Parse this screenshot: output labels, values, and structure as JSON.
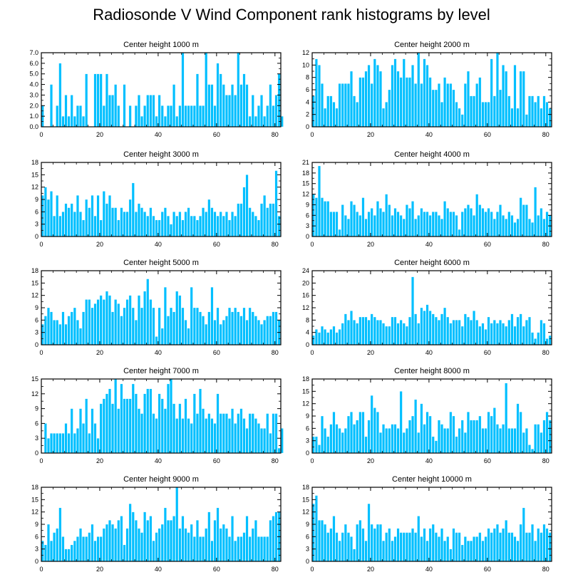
{
  "figure": {
    "title": "Radiosonde V Wind Component rank histograms by level"
  },
  "style": {
    "bar_color": "#00bfff",
    "bar_edge": "#ffffff",
    "axis_color": "#000000"
  },
  "chart_data": [
    {
      "type": "bar",
      "title": "Center height 1000 m",
      "xlim": [
        0,
        82
      ],
      "ylim": [
        0,
        7
      ],
      "xticks": [
        0,
        20,
        40,
        60,
        80
      ],
      "yticks": [
        "0.0",
        "1.0",
        "2.0",
        "3.0",
        "4.0",
        "5.0",
        "6.0",
        "7.0"
      ],
      "values": [
        2,
        0,
        0,
        4,
        0,
        2,
        6,
        1,
        3,
        1,
        3,
        1,
        2,
        2,
        1,
        5,
        0,
        0,
        5,
        5,
        5,
        2,
        5,
        3,
        3,
        4,
        2,
        0,
        4,
        0,
        2,
        0,
        2,
        3,
        1,
        2,
        3,
        3,
        3,
        1,
        3,
        2,
        1,
        2,
        2,
        4,
        1,
        2,
        7,
        2,
        2,
        2,
        2,
        5,
        2,
        2,
        7,
        4,
        4,
        2,
        6,
        5,
        4,
        3,
        3,
        4,
        3,
        7,
        4,
        5,
        4,
        1,
        3,
        1,
        2,
        3,
        1,
        2,
        4,
        2,
        3,
        5,
        1
      ]
    },
    {
      "type": "bar",
      "title": "Center height 2000 m",
      "xlim": [
        0,
        82
      ],
      "ylim": [
        0,
        12
      ],
      "xticks": [
        0,
        20,
        40,
        60,
        80
      ],
      "yticks": [
        "0",
        "2",
        "4",
        "6",
        "8",
        "10",
        "12"
      ],
      "values": [
        5,
        11,
        10,
        7,
        3,
        5,
        5,
        4,
        3,
        7,
        7,
        7,
        7,
        9,
        5,
        4,
        8,
        8,
        9,
        10,
        7,
        11,
        10,
        9,
        3,
        4,
        6,
        10,
        11,
        9,
        8,
        11,
        8,
        8,
        10,
        7,
        12,
        7,
        11,
        10,
        8,
        6,
        6,
        7,
        4,
        8,
        7,
        7,
        6,
        4,
        3,
        2,
        7,
        9,
        5,
        5,
        7,
        8,
        4,
        4,
        4,
        11,
        5,
        12,
        6,
        10,
        9,
        5,
        3,
        10,
        3,
        9,
        9,
        2,
        5,
        5,
        4,
        5,
        3,
        5,
        4,
        3
      ]
    },
    {
      "type": "bar",
      "title": "Center height 3000 m",
      "xlim": [
        0,
        82
      ],
      "ylim": [
        0,
        18
      ],
      "xticks": [
        0,
        20,
        40,
        60,
        80
      ],
      "yticks": [
        "0",
        "3",
        "6",
        "9",
        "12",
        "15",
        "18"
      ],
      "values": [
        10,
        12,
        9,
        11,
        5,
        10,
        5,
        6,
        8,
        7,
        8,
        6,
        10,
        6,
        4,
        9,
        7,
        10,
        5,
        10,
        4,
        11,
        8,
        10,
        7,
        7,
        4,
        7,
        6,
        6,
        9,
        13,
        6,
        8,
        7,
        6,
        5,
        7,
        5,
        4,
        4,
        6,
        7,
        5,
        3,
        6,
        5,
        6,
        4,
        6,
        7,
        5,
        5,
        4,
        5,
        7,
        6,
        9,
        7,
        6,
        5,
        6,
        5,
        6,
        4,
        6,
        5,
        8,
        8,
        12,
        15,
        7,
        6,
        5,
        4,
        8,
        10,
        7,
        8,
        8,
        16,
        5
      ]
    },
    {
      "type": "bar",
      "title": "Center height 4000 m",
      "xlim": [
        0,
        82
      ],
      "ylim": [
        0,
        21
      ],
      "xticks": [
        0,
        20,
        40,
        60,
        80
      ],
      "yticks": [
        "0",
        "3",
        "6",
        "9",
        "12",
        "15",
        "18",
        "21"
      ],
      "values": [
        12,
        11,
        20,
        11,
        10,
        10,
        7,
        7,
        7,
        2,
        9,
        6,
        5,
        10,
        9,
        7,
        6,
        11,
        5,
        7,
        8,
        6,
        10,
        8,
        7,
        12,
        9,
        6,
        8,
        7,
        6,
        5,
        9,
        8,
        10,
        5,
        6,
        8,
        7,
        7,
        6,
        7,
        7,
        6,
        5,
        10,
        8,
        7,
        7,
        6,
        2,
        7,
        8,
        9,
        8,
        6,
        12,
        9,
        8,
        7,
        8,
        7,
        5,
        7,
        9,
        6,
        5,
        7,
        6,
        4,
        5,
        11,
        9,
        9,
        5,
        4,
        14,
        6,
        8,
        5,
        7,
        6
      ]
    },
    {
      "type": "bar",
      "title": "Center height 5000 m",
      "xlim": [
        0,
        82
      ],
      "ylim": [
        0,
        18
      ],
      "xticks": [
        0,
        20,
        40,
        60,
        80
      ],
      "yticks": [
        "0",
        "3",
        "6",
        "9",
        "12",
        "15",
        "18"
      ],
      "values": [
        5,
        7,
        9,
        8,
        6,
        6,
        5,
        8,
        5,
        7,
        8,
        9,
        6,
        4,
        8,
        11,
        11,
        9,
        10,
        11,
        12,
        11,
        13,
        12,
        8,
        11,
        10,
        7,
        9,
        11,
        12,
        9,
        6,
        12,
        9,
        13,
        16,
        11,
        9,
        2,
        9,
        4,
        14,
        7,
        9,
        8,
        13,
        12,
        9,
        6,
        4,
        14,
        9,
        9,
        8,
        7,
        5,
        8,
        14,
        6,
        9,
        5,
        6,
        7,
        9,
        8,
        9,
        8,
        7,
        9,
        6,
        9,
        8,
        7,
        6,
        5,
        6,
        7,
        7,
        8,
        8,
        6
      ]
    },
    {
      "type": "bar",
      "title": "Center height 6000 m",
      "xlim": [
        0,
        82
      ],
      "ylim": [
        0,
        24
      ],
      "xticks": [
        0,
        20,
        40,
        60,
        80
      ],
      "yticks": [
        "0",
        "4",
        "8",
        "12",
        "16",
        "20",
        "24"
      ],
      "values": [
        3,
        5,
        4,
        6,
        5,
        4,
        5,
        6,
        4,
        5,
        7,
        10,
        8,
        11,
        8,
        7,
        9,
        9,
        9,
        8,
        10,
        9,
        8,
        8,
        7,
        6,
        6,
        9,
        9,
        7,
        8,
        7,
        6,
        9,
        22,
        10,
        7,
        12,
        11,
        13,
        11,
        10,
        9,
        8,
        10,
        12,
        9,
        7,
        8,
        8,
        8,
        6,
        10,
        9,
        8,
        11,
        8,
        6,
        7,
        5,
        9,
        7,
        8,
        7,
        8,
        7,
        6,
        8,
        10,
        6,
        9,
        10,
        6,
        8,
        9,
        4,
        2,
        4,
        8,
        7,
        2,
        3
      ]
    },
    {
      "type": "bar",
      "title": "Center height 7000 m",
      "xlim": [
        0,
        82
      ],
      "ylim": [
        0,
        15
      ],
      "xticks": [
        0,
        20,
        40,
        60,
        80
      ],
      "yticks": [
        "0",
        "3",
        "6",
        "9",
        "12",
        "15"
      ],
      "values": [
        0,
        6,
        3,
        4,
        4,
        4,
        4,
        4,
        6,
        4,
        9,
        4,
        5,
        9,
        6,
        11,
        4,
        9,
        6,
        3,
        10,
        11,
        12,
        13,
        10,
        15,
        9,
        14,
        11,
        11,
        11,
        14,
        12,
        9,
        8,
        12,
        13,
        13,
        8,
        7,
        12,
        11,
        9,
        14,
        15,
        10,
        7,
        10,
        7,
        11,
        7,
        6,
        12,
        8,
        13,
        9,
        7,
        8,
        7,
        6,
        12,
        8,
        8,
        8,
        7,
        9,
        6,
        8,
        9,
        7,
        5,
        8,
        8,
        7,
        6,
        5,
        5,
        8,
        4,
        8,
        8,
        1,
        5
      ]
    },
    {
      "type": "bar",
      "title": "Center height 8000 m",
      "xlim": [
        0,
        82
      ],
      "ylim": [
        0,
        18
      ],
      "xticks": [
        0,
        20,
        40,
        60,
        80
      ],
      "yticks": [
        "0",
        "3",
        "6",
        "9",
        "12",
        "15",
        "18"
      ],
      "values": [
        4,
        4,
        2,
        9,
        6,
        4,
        7,
        10,
        7,
        6,
        5,
        6,
        9,
        10,
        7,
        8,
        10,
        10,
        4,
        8,
        14,
        11,
        10,
        5,
        7,
        6,
        6,
        7,
        7,
        6,
        15,
        5,
        6,
        8,
        9,
        13,
        5,
        12,
        7,
        10,
        9,
        4,
        3,
        8,
        7,
        6,
        6,
        10,
        9,
        4,
        6,
        8,
        5,
        10,
        8,
        8,
        8,
        9,
        6,
        6,
        10,
        9,
        11,
        7,
        6,
        7,
        17,
        6,
        6,
        6,
        12,
        10,
        5,
        6,
        2,
        1,
        7,
        7,
        5,
        8,
        10,
        8
      ]
    },
    {
      "type": "bar",
      "title": "Center height 9000 m",
      "xlim": [
        0,
        82
      ],
      "ylim": [
        0,
        18
      ],
      "xticks": [
        0,
        20,
        40,
        60,
        80
      ],
      "yticks": [
        "0",
        "3",
        "6",
        "9",
        "12",
        "15",
        "18"
      ],
      "values": [
        5,
        4,
        9,
        5,
        7,
        8,
        13,
        6,
        3,
        3,
        4,
        5,
        6,
        8,
        6,
        6,
        7,
        9,
        5,
        6,
        6,
        8,
        9,
        10,
        9,
        8,
        10,
        11,
        4,
        8,
        14,
        12,
        10,
        8,
        7,
        12,
        10,
        11,
        5,
        7,
        8,
        9,
        13,
        10,
        10,
        11,
        18,
        8,
        11,
        8,
        7,
        9,
        6,
        10,
        6,
        6,
        8,
        12,
        5,
        10,
        13,
        8,
        9,
        8,
        6,
        11,
        5,
        6,
        6,
        7,
        11,
        6,
        8,
        10,
        6,
        6,
        6,
        6,
        10,
        11,
        12,
        12
      ]
    },
    {
      "type": "bar",
      "title": "Center height 10000 m",
      "xlim": [
        0,
        82
      ],
      "ylim": [
        0,
        18
      ],
      "xticks": [
        0,
        20,
        40,
        60,
        80
      ],
      "yticks": [
        "0",
        "3",
        "6",
        "9",
        "12",
        "15",
        "18"
      ],
      "values": [
        14,
        16,
        10,
        10,
        9,
        7,
        8,
        11,
        7,
        5,
        7,
        9,
        7,
        6,
        3,
        9,
        10,
        8,
        5,
        14,
        9,
        8,
        9,
        9,
        5,
        7,
        8,
        5,
        6,
        8,
        7,
        7,
        7,
        7,
        8,
        7,
        11,
        6,
        8,
        5,
        8,
        9,
        7,
        6,
        8,
        5,
        6,
        3,
        8,
        7,
        7,
        4,
        6,
        5,
        5,
        6,
        6,
        7,
        5,
        6,
        8,
        7,
        8,
        9,
        7,
        8,
        10,
        7,
        7,
        6,
        5,
        9,
        13,
        7,
        7,
        9,
        5,
        8,
        7,
        9,
        8,
        7
      ]
    }
  ]
}
